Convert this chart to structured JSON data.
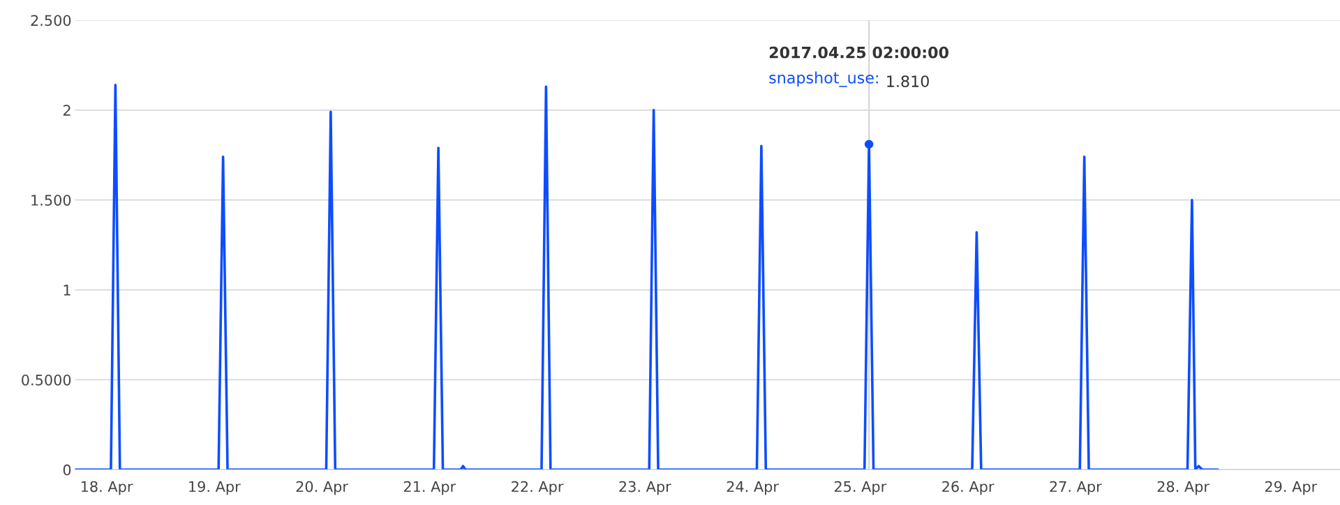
{
  "chart_data": {
    "type": "line",
    "x": [
      "2017-04-17T17:00",
      "2017-04-18T01:00",
      "2017-04-18T02:00",
      "2017-04-18T03:00",
      "2017-04-19T01:00",
      "2017-04-19T02:00",
      "2017-04-19T03:00",
      "2017-04-20T01:00",
      "2017-04-20T02:00",
      "2017-04-20T03:00",
      "2017-04-21T01:00",
      "2017-04-21T02:00",
      "2017-04-21T03:00",
      "2017-04-21T07:00",
      "2017-04-21T07:30",
      "2017-04-21T08:00",
      "2017-04-22T01:00",
      "2017-04-22T02:00",
      "2017-04-22T03:00",
      "2017-04-23T01:00",
      "2017-04-23T02:00",
      "2017-04-23T03:00",
      "2017-04-24T01:00",
      "2017-04-24T02:00",
      "2017-04-24T03:00",
      "2017-04-25T01:00",
      "2017-04-25T02:00",
      "2017-04-25T03:00",
      "2017-04-26T01:00",
      "2017-04-26T02:00",
      "2017-04-26T03:00",
      "2017-04-27T01:00",
      "2017-04-27T02:00",
      "2017-04-27T03:00",
      "2017-04-28T01:00",
      "2017-04-28T02:00",
      "2017-04-28T02:45",
      "2017-04-28T03:30",
      "2017-04-28T04:15",
      "2017-04-28T07:45"
    ],
    "series": [
      {
        "color": "#0d4dff",
        "values": [
          0,
          0,
          2.14,
          0,
          0,
          1.74,
          0,
          0,
          1.99,
          0,
          0,
          1.79,
          0,
          0,
          0.02,
          0,
          0,
          2.13,
          0,
          0,
          2.0,
          0,
          0,
          1.8,
          0,
          0,
          1.81,
          0,
          0,
          1.32,
          0,
          0,
          1.74,
          0,
          0,
          1.5,
          0,
          0.02,
          0,
          0
        ]
      }
    ],
    "xlim": [
      "2017-04-17T17:00",
      "2017-04-29T11:00"
    ],
    "xticks": [
      {
        "value": "2017-04-18",
        "label": "18. Apr"
      },
      {
        "value": "2017-04-19",
        "label": "19. Apr"
      },
      {
        "value": "2017-04-20",
        "label": "20. Apr"
      },
      {
        "value": "2017-04-21",
        "label": "21. Apr"
      },
      {
        "value": "2017-04-22",
        "label": "22. Apr"
      },
      {
        "value": "2017-04-23",
        "label": "23. Apr"
      },
      {
        "value": "2017-04-24",
        "label": "24. Apr"
      },
      {
        "value": "2017-04-25",
        "label": "25. Apr"
      },
      {
        "value": "2017-04-26",
        "label": "26. Apr"
      },
      {
        "value": "2017-04-27",
        "label": "27. Apr"
      },
      {
        "value": "2017-04-28",
        "label": "28. Apr"
      },
      {
        "value": "2017-04-29",
        "label": "29. Apr"
      }
    ],
    "ylim": [
      0,
      2.5
    ],
    "yticks": [
      {
        "value": 0,
        "label": "0"
      },
      {
        "value": 0.5,
        "label": "0.5000"
      },
      {
        "value": 1,
        "label": "1"
      },
      {
        "value": 1.5,
        "label": "1.500"
      },
      {
        "value": 2,
        "label": "2"
      },
      {
        "value": 2.5,
        "label": "2.500"
      }
    ],
    "grid": "y",
    "ref_lines": [
      {
        "axis": "x",
        "value": "2017-04-25T02:00",
        "color": "#cccccc"
      }
    ],
    "annotations": [
      "2017.04.25 02:00:00",
      "snapshot_use:",
      "1.810"
    ]
  }
}
